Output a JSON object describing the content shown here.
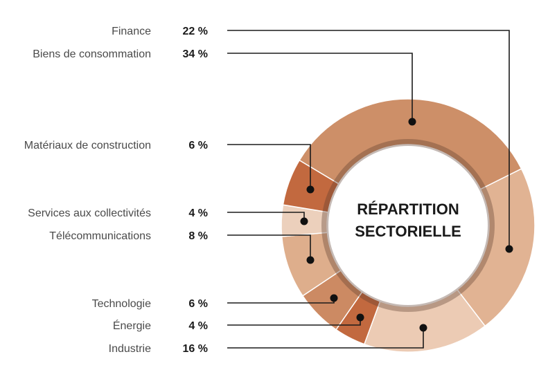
{
  "chart_data": {
    "type": "pie",
    "variant": "donut",
    "title_lines": [
      "RÉPARTITION",
      "SECTORIELLE"
    ],
    "unit": "%",
    "legend_placement": "left",
    "slices": [
      {
        "label": "Biens de consommation",
        "value": 34,
        "display": "34 %",
        "color": "#cd8f68"
      },
      {
        "label": "Finance",
        "value": 22,
        "display": "22 %",
        "color": "#e1b393"
      },
      {
        "label": "Industrie",
        "value": 16,
        "display": "16 %",
        "color": "#eccbb4"
      },
      {
        "label": "Énergie",
        "value": 4,
        "display": "4 %",
        "color": "#c2693f"
      },
      {
        "label": "Technologie",
        "value": 6,
        "display": "6 %",
        "color": "#cc8a63"
      },
      {
        "label": "Télécommunications",
        "value": 8,
        "display": "8 %",
        "color": "#deae8c"
      },
      {
        "label": "Services aux collectivités",
        "value": 4,
        "display": "4 %",
        "color": "#ecd0bc"
      },
      {
        "label": "Matériaux de construction",
        "value": 6,
        "display": "6 %",
        "color": "#c2693f"
      }
    ],
    "legend_order": [
      "Finance",
      "Biens de consommation",
      "Matériaux de construction",
      "Services aux collectivités",
      "Télécommunications",
      "Technologie",
      "Énergie",
      "Industrie"
    ]
  }
}
